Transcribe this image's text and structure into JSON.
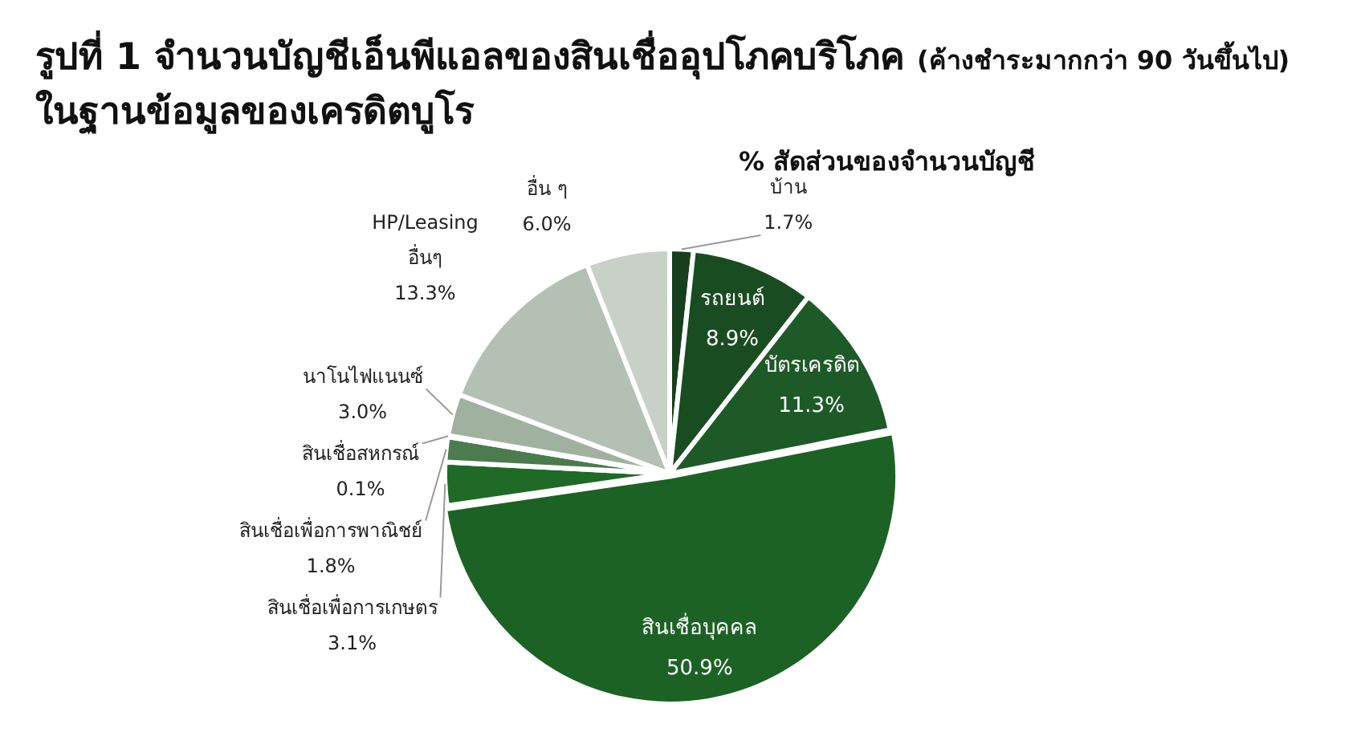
{
  "chart_data": {
    "type": "pie",
    "title": "รูปที่ 1 จำนวนบัญชีเอ็นพีแอลของสินเชื่ออุปโภคบริโภค (ค้างชำระมากกว่า 90 วันขึ้นไป) ในฐานข้อมูลของเครดิตบูโร",
    "subtitle": "% สัดส่วนของจำนวนบัญชี",
    "categories": [
      "บ้าน",
      "รถยนต์",
      "บัตรเครดิต",
      "สินเชื่อบุคคล",
      "สินเชื่อเพื่อการเกษตร",
      "สินเชื่อเพื่อการพาณิชย์",
      "สินเชื่อสหกรณ์",
      "นาโนไฟแนนซ์",
      "HP/Leasing อื่นๆ",
      "อื่น ๆ"
    ],
    "values": [
      1.7,
      8.9,
      11.3,
      50.9,
      3.1,
      1.8,
      0.1,
      3.0,
      13.3,
      6.0
    ],
    "value_labels": [
      "1.7%",
      "8.9%",
      "11.3%",
      "50.9%",
      "3.1%",
      "1.8%",
      "0.1%",
      "3.0%",
      "13.3%",
      "6.0%"
    ],
    "colors": [
      "#173f1d",
      "#1a4c22",
      "#1d5a27",
      "#1c6224",
      "#1f6a27",
      "#4b7b4f",
      "#7a9a7c",
      "#a0b1a0",
      "#b3c0b3",
      "#c8d0c8"
    ],
    "legend": false
  }
}
